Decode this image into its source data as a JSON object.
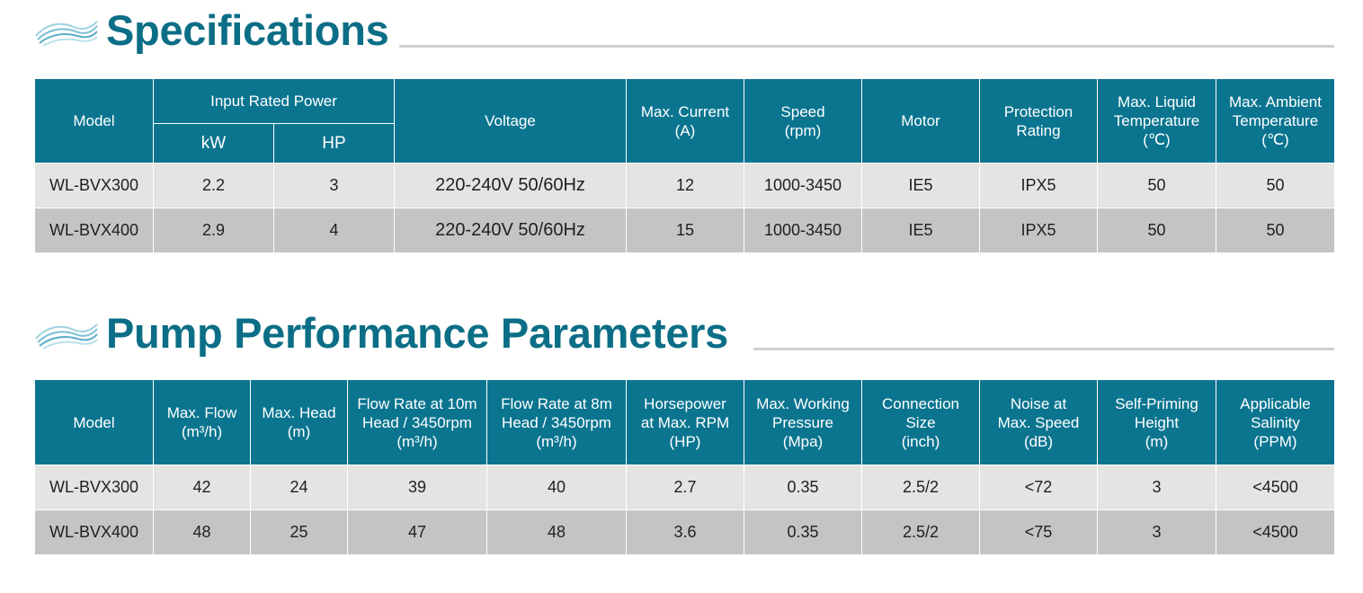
{
  "specifications": {
    "title": "Specifications",
    "headers": {
      "model": "Model",
      "input_rated_power": "Input Rated Power",
      "kw": "kW",
      "hp": "HP",
      "voltage": "Voltage",
      "max_current": [
        "Max. Current",
        "(A)"
      ],
      "speed": [
        "Speed",
        "(rpm)"
      ],
      "motor": "Motor",
      "protection_rating": [
        "Protection",
        "Rating"
      ],
      "max_liquid_temp": [
        "Max. Liquid",
        "Temperature",
        "(℃)"
      ],
      "max_ambient_temp": [
        "Max. Ambient",
        "Temperature",
        "(℃)"
      ]
    },
    "rows": [
      [
        "WL-BVX300",
        "2.2",
        "3",
        "220-240V 50/60Hz",
        "12",
        "1000-3450",
        "IE5",
        "IPX5",
        "50",
        "50"
      ],
      [
        "WL-BVX400",
        "2.9",
        "4",
        "220-240V 50/60Hz",
        "15",
        "1000-3450",
        "IE5",
        "IPX5",
        "50",
        "50"
      ]
    ]
  },
  "performance": {
    "title": "Pump Performance Parameters",
    "headers": {
      "model": "Model",
      "max_flow": [
        "Max. Flow",
        "(m³/h)"
      ],
      "max_head": [
        "Max. Head",
        "(m)"
      ],
      "flow_10m": [
        "Flow Rate at 10m",
        "Head / 3450rpm",
        "(m³/h)"
      ],
      "flow_8m": [
        "Flow Rate at 8m",
        "Head / 3450rpm",
        "(m³/h)"
      ],
      "horsepower": [
        "Horsepower",
        "at Max. RPM",
        "(HP)"
      ],
      "max_pressure": [
        "Max. Working",
        "Pressure",
        "(Mpa)"
      ],
      "connection": [
        "Connection",
        "Size",
        "(inch)"
      ],
      "noise": [
        "Noise at",
        "Max. Speed",
        "(dB)"
      ],
      "self_priming": [
        "Self-Priming",
        "Height",
        "(m)"
      ],
      "salinity": [
        "Applicable",
        "Salinity",
        "(PPM)"
      ]
    },
    "rows": [
      [
        "WL-BVX300",
        "42",
        "24",
        "39",
        "40",
        "2.7",
        "0.35",
        "2.5/2",
        "<72",
        "3",
        "<4500"
      ],
      [
        "WL-BVX400",
        "48",
        "25",
        "47",
        "48",
        "3.6",
        "0.35",
        "2.5/2",
        "<75",
        "3",
        "<4500"
      ]
    ]
  },
  "colors": {
    "title": "#0b6e86",
    "header_bg": "#0b7590",
    "row_light": "#e4e4e2",
    "row_dark": "#c4c4c2",
    "rule": "#cfcfcf"
  },
  "icons": [
    "wave-icon"
  ]
}
